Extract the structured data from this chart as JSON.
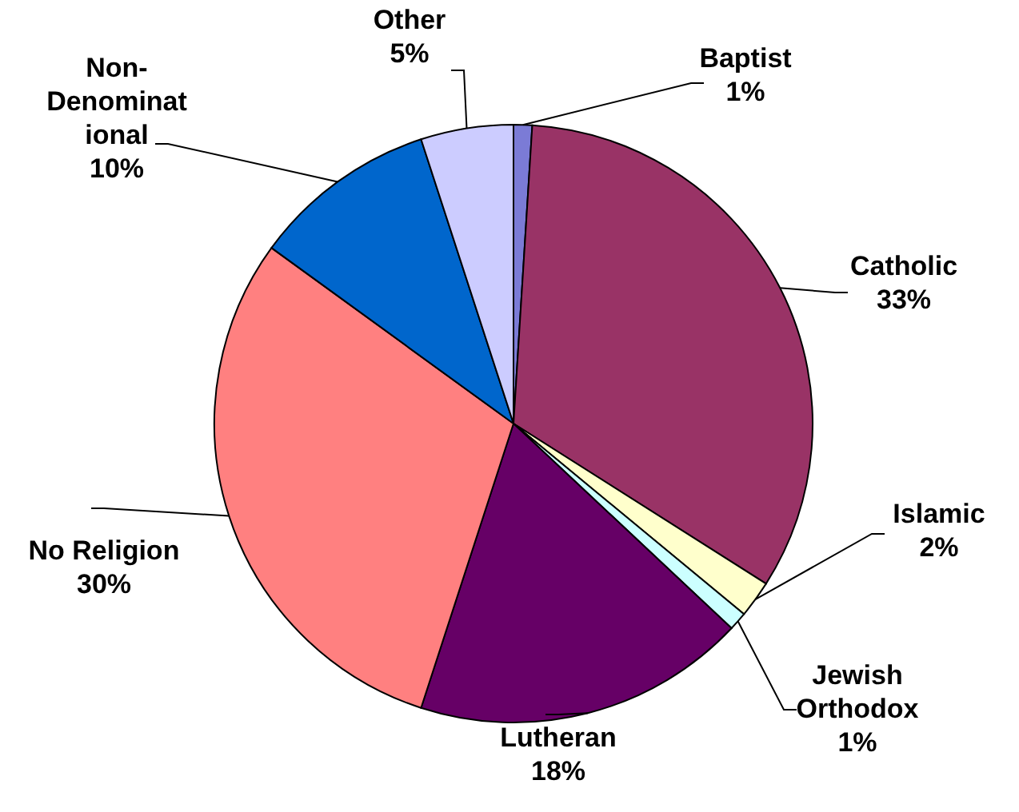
{
  "chart_data": {
    "type": "pie",
    "categories": [
      "Baptist",
      "Catholic",
      "Islamic",
      "Jewish Orthodox",
      "Lutheran",
      "No Religion",
      "Non-Denominational",
      "Other"
    ],
    "values": [
      1,
      33,
      2,
      1,
      18,
      30,
      10,
      5
    ],
    "value_labels": [
      "1%",
      "33%",
      "2%",
      "1%",
      "18%",
      "30%",
      "10%",
      "5%"
    ],
    "colors": [
      "#7b7bd6",
      "#993366",
      "#ffffcc",
      "#ccffff",
      "#660066",
      "#ff8080",
      "#0066cc",
      "#ccccff"
    ],
    "legend": false
  }
}
